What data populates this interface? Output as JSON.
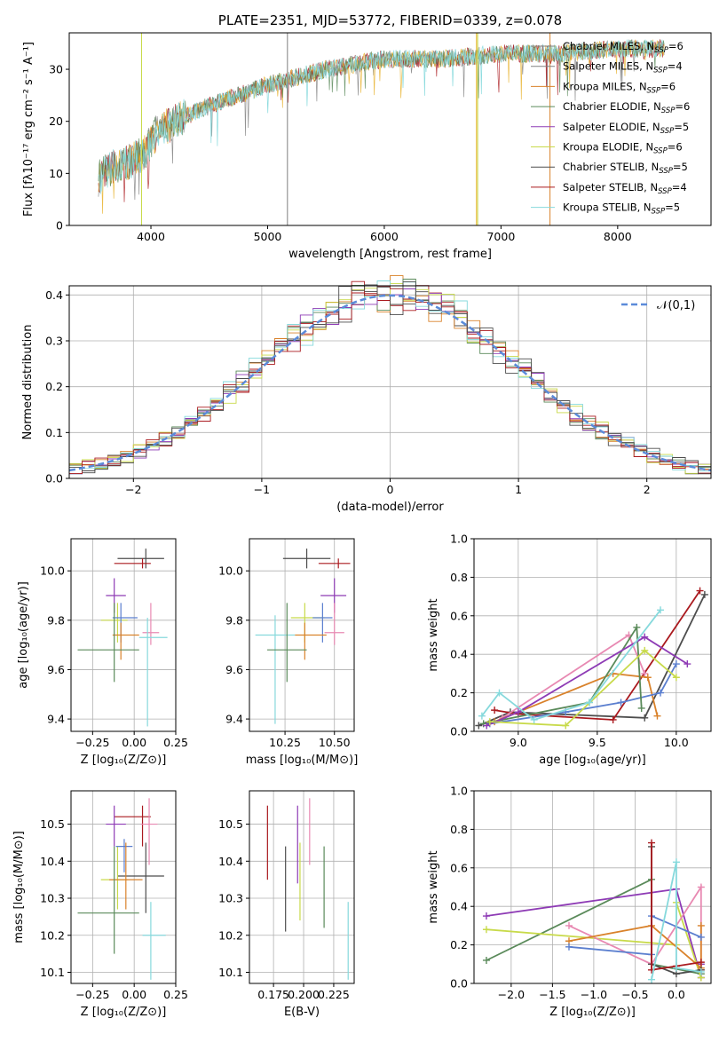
{
  "colors": [
    "#4d4d4d",
    "#aa1a1f",
    "#e7b22c",
    "#5a8a5a",
    "#8e3bb5",
    "#c8da4a",
    "#4d4d4d",
    "#aa1a1f",
    "#86d9dc"
  ],
  "chart_data": [
    {
      "type": "line",
      "title": "PLATE=2351, MJD=53772, FIBERID=0339, z=0.078",
      "xlabel": "wavelength [Angstrom, rest frame]",
      "ylabel": "Flux [fλ10⁻¹⁷ erg cm⁻² s⁻¹ A⁻¹]",
      "xlim": [
        3300,
        8800
      ],
      "ylim": [
        0,
        37
      ],
      "xticks": [
        4000,
        5000,
        6000,
        7000,
        8000
      ],
      "yticks": [
        0,
        10,
        20,
        30
      ],
      "legend_position": "right",
      "legend": [
        "Chabrier MILES, N_SSP=6",
        "Salpeter MILES, N_SSP=4",
        "Kroupa MILES, N_SSP=6",
        "Chabrier ELODIE, N_SSP=6",
        "Salpeter ELODIE, N_SSP=5",
        "Kroupa ELODIE, N_SSP=6",
        "Chabrier STELIB, N_SSP=5",
        "Salpeter STELIB, N_SSP=4",
        "Kroupa STELIB, N_SSP=5"
      ],
      "legend_colors": [
        "#808080",
        "#808080",
        "#d9822b",
        "#5a8a5a",
        "#8e3bb5",
        "#c8da4a",
        "#4d4d4d",
        "#aa1a1f",
        "#86d9dc"
      ],
      "continuum": {
        "x": [
          3550,
          3650,
          3800,
          3950,
          4050,
          4300,
          4500,
          5000,
          5500,
          6000,
          6500,
          7000,
          7500,
          8000,
          8400
        ],
        "y": [
          9,
          11,
          12,
          14,
          18,
          21,
          23,
          27,
          30,
          32,
          32,
          33,
          33,
          34,
          34
        ]
      }
    },
    {
      "type": "histogram",
      "xlabel": "(data-model)/error",
      "ylabel": "Normed distribution",
      "xlim": [
        -2.5,
        2.5
      ],
      "ylim": [
        0,
        0.42
      ],
      "xticks": [
        -2,
        -1,
        0,
        1,
        2
      ],
      "yticks": [
        0.0,
        0.1,
        0.2,
        0.3,
        0.4
      ],
      "legend": [
        "𝒩(0,1)"
      ],
      "bin_width": 0.1
    },
    {
      "type": "scatter",
      "xlabel": "Z [log₁₀(Z/Z⊙)]",
      "ylabel": "age  [log₁₀(age/yr)]",
      "xlim": [
        -0.38,
        0.25
      ],
      "ylim": [
        9.35,
        10.13
      ],
      "xticks": [
        -0.25,
        0.0,
        0.25
      ],
      "yticks": [
        9.4,
        9.6,
        9.8,
        10.0
      ],
      "points": [
        {
          "x": 0.07,
          "y": 10.05,
          "xerr": [
            0.17,
            0.11
          ],
          "yerr": [
            0.04,
            0.04
          ],
          "c": "#4d4d4d"
        },
        {
          "x": 0.05,
          "y": 10.03,
          "xerr": [
            0.17,
            0.05
          ],
          "yerr": [
            0.02,
            0.02
          ],
          "c": "#aa1a1f"
        },
        {
          "x": -0.12,
          "y": 9.9,
          "xerr": [
            0.05,
            0.07
          ],
          "yerr": [
            0.07,
            0.07
          ],
          "c": "#8e3bb5"
        },
        {
          "x": -0.1,
          "y": 9.8,
          "xerr": [
            0.1,
            0.06
          ],
          "yerr": [
            0.09,
            0.07
          ],
          "c": "#c8da4a"
        },
        {
          "x": -0.08,
          "y": 9.81,
          "xerr": [
            0.05,
            0.1
          ],
          "yerr": [
            0.1,
            0.06
          ],
          "c": "#5b7fcf"
        },
        {
          "x": -0.08,
          "y": 9.74,
          "xerr": [
            0.05,
            0.11
          ],
          "yerr": [
            0.1,
            0.05
          ],
          "c": "#d9822b"
        },
        {
          "x": 0.1,
          "y": 9.75,
          "xerr": [
            0.05,
            0.05
          ],
          "yerr": [
            0.05,
            0.12
          ],
          "c": "#e889b2"
        },
        {
          "x": 0.08,
          "y": 9.73,
          "xerr": [
            0.05,
            0.12
          ],
          "yerr": [
            0.36,
            0.08
          ],
          "c": "#86d9dc"
        },
        {
          "x": -0.12,
          "y": 9.68,
          "xerr": [
            0.22,
            0.15
          ],
          "yerr": [
            0.13,
            0.19
          ],
          "c": "#5a8a5a"
        }
      ]
    },
    {
      "type": "scatter",
      "xlabel": "mass [log₁₀(M/M⊙)]",
      "xlim": [
        10.07,
        10.6
      ],
      "ylim": [
        9.35,
        10.13
      ],
      "xticks": [
        10.25,
        10.5
      ],
      "yticks": [
        9.4,
        9.6,
        9.8,
        10.0
      ],
      "points": [
        {
          "x": 10.36,
          "y": 10.05,
          "xerr": [
            0.12,
            0.12
          ],
          "yerr": [
            0.04,
            0.04
          ],
          "c": "#4d4d4d"
        },
        {
          "x": 10.52,
          "y": 10.03,
          "xerr": [
            0.1,
            0.06
          ],
          "yerr": [
            0.02,
            0.02
          ],
          "c": "#aa1a1f"
        },
        {
          "x": 10.5,
          "y": 9.9,
          "xerr": [
            0.07,
            0.06
          ],
          "yerr": [
            0.07,
            0.07
          ],
          "c": "#8e3bb5"
        },
        {
          "x": 10.35,
          "y": 9.81,
          "xerr": [
            0.07,
            0.1
          ],
          "yerr": [
            0.1,
            0.06
          ],
          "c": "#c8da4a"
        },
        {
          "x": 10.44,
          "y": 9.81,
          "xerr": [
            0.05,
            0.05
          ],
          "yerr": [
            0.1,
            0.06
          ],
          "c": "#5b7fcf"
        },
        {
          "x": 10.35,
          "y": 9.74,
          "xerr": [
            0.05,
            0.11
          ],
          "yerr": [
            0.1,
            0.05
          ],
          "c": "#d9822b"
        },
        {
          "x": 10.5,
          "y": 9.75,
          "xerr": [
            0.05,
            0.05
          ],
          "yerr": [
            0.05,
            0.12
          ],
          "c": "#e889b2"
        },
        {
          "x": 10.2,
          "y": 9.74,
          "xerr": [
            0.1,
            0.1
          ],
          "yerr": [
            0.36,
            0.08
          ],
          "c": "#86d9dc"
        },
        {
          "x": 10.26,
          "y": 9.68,
          "xerr": [
            0.1,
            0.1
          ],
          "yerr": [
            0.13,
            0.19
          ],
          "c": "#5a8a5a"
        }
      ]
    },
    {
      "type": "line",
      "xlabel": "age  [log₁₀(age/yr)]",
      "ylabel": "mass weight",
      "xlim": [
        8.72,
        10.22
      ],
      "ylim": [
        0.0,
        1.0
      ],
      "xticks": [
        9.0,
        9.5,
        10.0
      ],
      "yticks": [
        0.0,
        0.2,
        0.4,
        0.6,
        0.8,
        1.0
      ],
      "series": [
        {
          "c": "#4d4d4d",
          "x": [
            8.75,
            8.95,
            9.8,
            10.18
          ],
          "y": [
            0.03,
            0.1,
            0.07,
            0.71
          ]
        },
        {
          "c": "#aa1a1f",
          "x": [
            8.85,
            9.0,
            9.6,
            10.15
          ],
          "y": [
            0.11,
            0.09,
            0.06,
            0.73
          ]
        },
        {
          "c": "#e889b2",
          "x": [
            8.9,
            9.7,
            9.8
          ],
          "y": [
            0.07,
            0.5,
            0.3
          ]
        },
        {
          "c": "#d9822b",
          "x": [
            8.85,
            9.6,
            9.82,
            9.88
          ],
          "y": [
            0.05,
            0.3,
            0.28,
            0.08
          ]
        },
        {
          "c": "#5b7fcf",
          "x": [
            8.82,
            9.3,
            9.65,
            9.9,
            10.0
          ],
          "y": [
            0.04,
            0.1,
            0.15,
            0.2,
            0.35
          ]
        },
        {
          "c": "#5a8a5a",
          "x": [
            8.78,
            9.45,
            9.75,
            9.78
          ],
          "y": [
            0.04,
            0.15,
            0.54,
            0.12
          ]
        },
        {
          "c": "#8e3bb5",
          "x": [
            8.8,
            9.0,
            9.8,
            10.07
          ],
          "y": [
            0.03,
            0.1,
            0.49,
            0.35
          ]
        },
        {
          "c": "#c8da4a",
          "x": [
            8.82,
            9.3,
            9.8,
            10.0
          ],
          "y": [
            0.05,
            0.03,
            0.42,
            0.28
          ]
        },
        {
          "c": "#86d9dc",
          "x": [
            8.77,
            8.88,
            9.1,
            9.45,
            9.9
          ],
          "y": [
            0.08,
            0.2,
            0.06,
            0.15,
            0.63
          ]
        }
      ]
    },
    {
      "type": "scatter",
      "xlabel": "Z [log₁₀(Z/Z⊙)]",
      "ylabel": "mass [log₁₀(M/M⊙)]",
      "xlim": [
        -0.38,
        0.25
      ],
      "ylim": [
        10.07,
        10.59
      ],
      "xticks": [
        -0.25,
        0.0,
        0.25
      ],
      "yticks": [
        10.1,
        10.2,
        10.3,
        10.4,
        10.5
      ],
      "points": [
        {
          "x": 0.07,
          "y": 10.36,
          "xerr": [
            0.17,
            0.11
          ],
          "yerr": [
            0.1,
            0.09
          ],
          "c": "#4d4d4d"
        },
        {
          "x": 0.05,
          "y": 10.52,
          "xerr": [
            0.17,
            0.05
          ],
          "yerr": [
            0.08,
            0.03
          ],
          "c": "#aa1a1f"
        },
        {
          "x": -0.12,
          "y": 10.5,
          "xerr": [
            0.05,
            0.07
          ],
          "yerr": [
            0.06,
            0.05
          ],
          "c": "#8e3bb5"
        },
        {
          "x": -0.1,
          "y": 10.35,
          "xerr": [
            0.1,
            0.06
          ],
          "yerr": [
            0.08,
            0.09
          ],
          "c": "#c8da4a"
        },
        {
          "x": -0.06,
          "y": 10.44,
          "xerr": [
            0.05,
            0.05
          ],
          "yerr": [
            0.07,
            0.02
          ],
          "c": "#5b7fcf"
        },
        {
          "x": -0.05,
          "y": 10.35,
          "xerr": [
            0.1,
            0.1
          ],
          "yerr": [
            0.08,
            0.1
          ],
          "c": "#d9822b"
        },
        {
          "x": 0.09,
          "y": 10.5,
          "xerr": [
            0.05,
            0.05
          ],
          "yerr": [
            0.11,
            0.07
          ],
          "c": "#e889b2"
        },
        {
          "x": 0.1,
          "y": 10.2,
          "xerr": [
            0.05,
            0.09
          ],
          "yerr": [
            0.12,
            0.09
          ],
          "c": "#86d9dc"
        },
        {
          "x": -0.12,
          "y": 10.26,
          "xerr": [
            0.22,
            0.15
          ],
          "yerr": [
            0.11,
            0.18
          ],
          "c": "#5a8a5a"
        }
      ]
    },
    {
      "type": "scatter",
      "xlabel": "E(B-V)",
      "xlim": [
        0.155,
        0.242
      ],
      "ylim": [
        10.07,
        10.59
      ],
      "xticks": [
        0.175,
        0.2,
        0.225
      ],
      "yticks": [
        10.1,
        10.2,
        10.3,
        10.4,
        10.5
      ],
      "points": [
        {
          "x": 0.17,
          "y": 10.45,
          "xerr": [
            0,
            0
          ],
          "yerr": [
            0.1,
            0.1
          ],
          "c": "#aa1a1f"
        },
        {
          "x": 0.185,
          "y": 10.32,
          "xerr": [
            0,
            0
          ],
          "yerr": [
            0.11,
            0.12
          ],
          "c": "#4d4d4d"
        },
        {
          "x": 0.195,
          "y": 10.44,
          "xerr": [
            0,
            0
          ],
          "yerr": [
            0.1,
            0.11
          ],
          "c": "#8e3bb5"
        },
        {
          "x": 0.197,
          "y": 10.35,
          "xerr": [
            0,
            0
          ],
          "yerr": [
            0.11,
            0.1
          ],
          "c": "#c8da4a"
        },
        {
          "x": 0.205,
          "y": 10.48,
          "xerr": [
            0,
            0
          ],
          "yerr": [
            0.09,
            0.09
          ],
          "c": "#e889b2"
        },
        {
          "x": 0.217,
          "y": 10.33,
          "xerr": [
            0,
            0
          ],
          "yerr": [
            0.11,
            0.11
          ],
          "c": "#5a8a5a"
        },
        {
          "x": 0.237,
          "y": 10.18,
          "xerr": [
            0,
            0
          ],
          "yerr": [
            0.1,
            0.11
          ],
          "c": "#86d9dc"
        }
      ]
    },
    {
      "type": "line",
      "xlabel": "Z [log₁₀(Z/Z⊙)]",
      "ylabel": "mass weight",
      "xlim": [
        -2.45,
        0.42
      ],
      "ylim": [
        0.0,
        1.0
      ],
      "xticks": [
        -2.0,
        -1.5,
        -1.0,
        -0.5,
        0.0
      ],
      "yticks": [
        0.0,
        0.2,
        0.4,
        0.6,
        0.8,
        1.0
      ],
      "series": [
        {
          "c": "#5a8a5a",
          "x": [
            -2.3,
            -0.3,
            -0.3,
            0.3
          ],
          "y": [
            0.12,
            0.54,
            0.1,
            0.05
          ]
        },
        {
          "c": "#8e3bb5",
          "x": [
            -2.3,
            0.0,
            0.3,
            0.3
          ],
          "y": [
            0.35,
            0.49,
            0.03,
            0.1
          ]
        },
        {
          "c": "#c8da4a",
          "x": [
            -2.3,
            0.0,
            0.0,
            0.3
          ],
          "y": [
            0.28,
            0.2,
            0.42,
            0.03
          ]
        },
        {
          "c": "#e889b2",
          "x": [
            -1.3,
            -0.3,
            0.3,
            0.3
          ],
          "y": [
            0.3,
            0.1,
            0.5,
            0.07
          ]
        },
        {
          "c": "#d9822b",
          "x": [
            -1.3,
            -0.3,
            0.3,
            0.3
          ],
          "y": [
            0.22,
            0.3,
            0.08,
            0.3
          ]
        },
        {
          "c": "#5b7fcf",
          "x": [
            -1.3,
            -0.3,
            -0.3,
            0.3
          ],
          "y": [
            0.19,
            0.15,
            0.35,
            0.24
          ]
        },
        {
          "c": "#4d4d4d",
          "x": [
            -0.3,
            -0.3,
            0.0,
            0.3
          ],
          "y": [
            0.71,
            0.1,
            0.05,
            0.07
          ]
        },
        {
          "c": "#aa1a1f",
          "x": [
            -0.3,
            -0.3,
            0.0,
            0.3
          ],
          "y": [
            0.73,
            0.07,
            0.09,
            0.11
          ]
        },
        {
          "c": "#86d9dc",
          "x": [
            -0.3,
            0.0,
            0.0,
            0.3
          ],
          "y": [
            0.02,
            0.63,
            0.08,
            0.06
          ]
        }
      ]
    }
  ]
}
